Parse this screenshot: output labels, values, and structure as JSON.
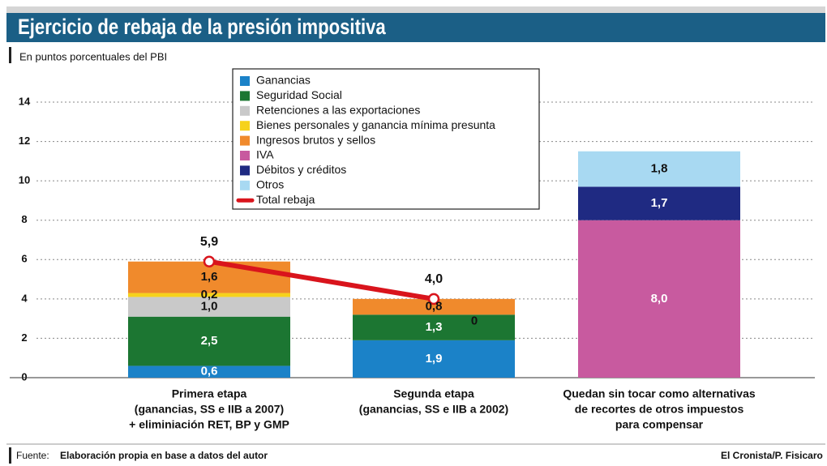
{
  "chart_data": {
    "type": "bar",
    "title": "Ejercicio de rebaja de la presión impositiva",
    "subtitle": "En puntos porcentuales del PBI",
    "stacked": true,
    "categories": [
      [
        "Primera etapa",
        "(ganancias, SS e IIB a 2007)",
        "+ eliminiación RET, BP y GMP"
      ],
      [
        "Segunda etapa",
        "(ganancias, SS e IIB a 2002)"
      ],
      [
        "Quedan sin tocar como alternativas",
        "de recortes de otros impuestos",
        "para compensar"
      ]
    ],
    "series": [
      {
        "name": "Ganancias",
        "color": "#1b82c8",
        "label_color": "#ffffff",
        "values": [
          0.6,
          1.9,
          null
        ],
        "value_labels": [
          "0,6",
          "1,9",
          null
        ]
      },
      {
        "name": "Seguridad Social",
        "color": "#1c7632",
        "label_color": "#ffffff",
        "values": [
          2.5,
          1.3,
          null
        ],
        "value_labels": [
          "2,5",
          "1,3",
          null
        ]
      },
      {
        "name": "Retenciones a las exportaciones",
        "color": "#c9c9c9",
        "label_color": "#111111",
        "values": [
          1.0,
          null,
          null
        ],
        "value_labels": [
          "1,0",
          null,
          null
        ]
      },
      {
        "name": "Bienes personales y ganancia mínima presunta",
        "color": "#f6d21c",
        "label_color": "#111111",
        "values": [
          0.2,
          0,
          null
        ],
        "value_labels": [
          "0,2",
          "0",
          null
        ]
      },
      {
        "name": "Ingresos brutos y sellos",
        "color": "#f08a2c",
        "label_color": "#111111",
        "values": [
          1.6,
          0.8,
          null
        ],
        "value_labels": [
          "1,6",
          "0,8",
          null
        ]
      },
      {
        "name": "IVA",
        "color": "#c85a9f",
        "label_color": "#ffffff",
        "values": [
          null,
          null,
          8.0
        ],
        "value_labels": [
          null,
          null,
          "8,0"
        ]
      },
      {
        "name": "Débitos y créditos",
        "color": "#1f2a82",
        "label_color": "#ffffff",
        "values": [
          null,
          null,
          1.7
        ],
        "value_labels": [
          null,
          null,
          "1,7"
        ]
      },
      {
        "name": "Otros",
        "color": "#a8d9f2",
        "label_color": "#111111",
        "values": [
          null,
          null,
          1.8
        ],
        "value_labels": [
          null,
          null,
          "1,8"
        ]
      },
      {
        "name": "Total rebaja",
        "type": "line",
        "color": "#d9141c",
        "label_color": "#111111",
        "values": [
          5.9,
          4.0,
          null
        ],
        "value_labels": [
          "5,9",
          "4,0",
          null
        ]
      }
    ],
    "ylim": [
      0,
      14
    ],
    "yticks": [
      0,
      2,
      4,
      6,
      8,
      10,
      12,
      14
    ],
    "grid": true,
    "source_label": "Fuente:",
    "source": "Elaboración propia en base a datos del autor",
    "credit": "El Cronista/P. Fisicaro"
  }
}
